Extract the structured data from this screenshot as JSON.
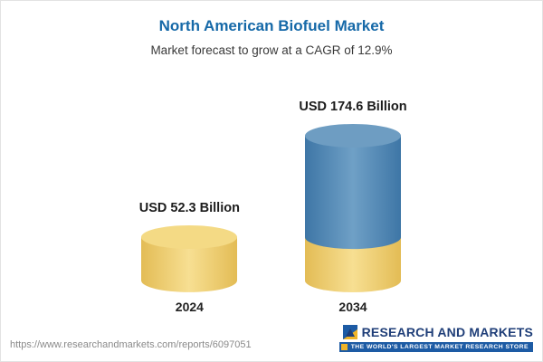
{
  "header": {
    "title": "North American Biofuel Market",
    "subtitle": "Market forecast to grow at a CAGR of 12.9%"
  },
  "chart_data": {
    "type": "bar",
    "subtype": "cylinder",
    "title": "North American Biofuel Market",
    "subtitle": "Market forecast to grow at a CAGR of 12.9%",
    "categories": [
      "2024",
      "2034"
    ],
    "values": [
      52.3,
      174.6
    ],
    "value_labels": [
      "USD 52.3 Billion",
      "USD 174.6 Billion"
    ],
    "unit": "USD Billion",
    "ylim": [
      0,
      174.6
    ],
    "cagr": "12.9%",
    "legend_position": "none",
    "grid": false,
    "colors": {
      "base_segment_dark": "#E3BC55",
      "base_segment_light": "#F7DF92",
      "base_cap": "#F4DA85",
      "growth_segment_dark": "#3E76A6",
      "growth_segment_light": "#6FA0C6",
      "growth_cap": "#6E9DC2"
    }
  },
  "footer": {
    "url": "https://www.researchandmarkets.com/reports/6097051",
    "logo_name": "RESEARCH AND MARKETS",
    "logo_tagline": "THE WORLD'S LARGEST MARKET RESEARCH STORE"
  }
}
